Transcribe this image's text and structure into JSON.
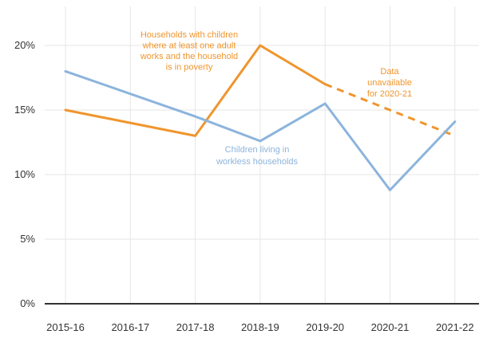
{
  "chart_data": {
    "type": "line",
    "categories": [
      "2015-16",
      "2016-17",
      "2017-18",
      "2018-19",
      "2019-20",
      "2020-21",
      "2021-22"
    ],
    "ylim": [
      0,
      22
    ],
    "yticks": [
      {
        "value": 0,
        "label": "0%"
      },
      {
        "value": 5,
        "label": "5%"
      },
      {
        "value": 10,
        "label": "10%"
      },
      {
        "value": 15,
        "label": "15%"
      },
      {
        "value": 20,
        "label": "20%"
      }
    ],
    "grid": "vertical and horizontal",
    "series": [
      {
        "key": "poverty",
        "color": "#f0952d",
        "values": [
          15,
          null,
          13,
          20,
          17,
          null,
          13
        ],
        "dashed_from_index": 4,
        "note": "Data unavailable for 2020-21"
      },
      {
        "key": "workless",
        "color": "#8cb4dc",
        "values": [
          18,
          null,
          14.5,
          12.6,
          15.5,
          8.8,
          14.1
        ]
      }
    ],
    "annotations": [
      {
        "series": "poverty",
        "lines": [
          "Households with children",
          "where at least one adult",
          "works and the household",
          "is in poverty"
        ]
      },
      {
        "series": "workless",
        "lines": [
          "Children living in",
          "workless households"
        ]
      },
      {
        "series": "poverty",
        "lines": [
          "Data",
          "unavailable",
          "for 2020-21"
        ]
      }
    ]
  }
}
